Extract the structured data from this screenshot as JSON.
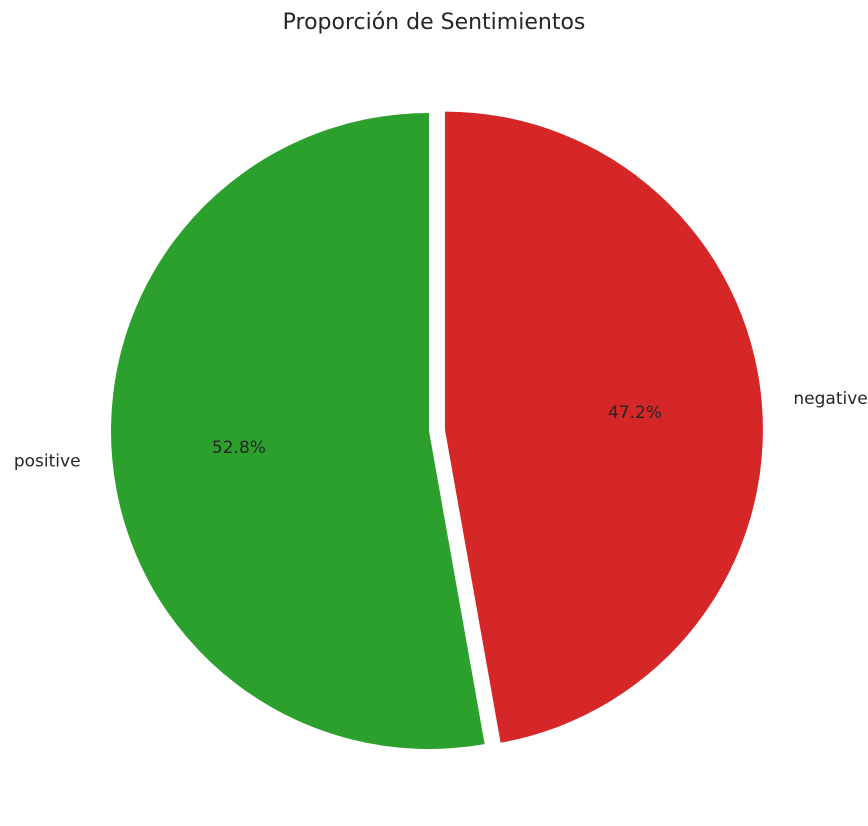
{
  "chart_data": {
    "type": "pie",
    "title": "Proporción de Sentimientos",
    "slices": [
      {
        "label": "negative",
        "value": 47.2,
        "pct_text": "47.2%",
        "color": "#d62728",
        "exploded": true
      },
      {
        "label": "positive",
        "value": 52.8,
        "pct_text": "52.8%",
        "color": "#2ca02c",
        "exploded": false
      }
    ],
    "start_angle": "top (90°)",
    "direction": "clockwise",
    "legend": "none"
  }
}
